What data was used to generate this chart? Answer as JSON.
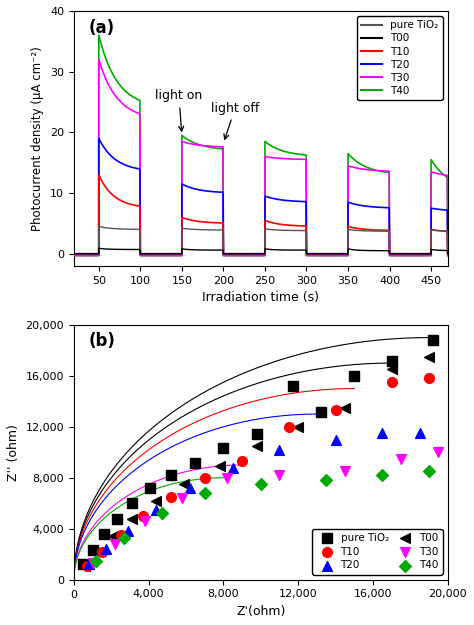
{
  "panel_a": {
    "title": "(a)",
    "xlabel": "Irradiation time (s)",
    "ylabel": "Photocurrent density (μA cm⁻²)",
    "xlim": [
      20,
      470
    ],
    "ylim": [
      -2,
      40
    ],
    "yticks": [
      0,
      10,
      20,
      30,
      40
    ],
    "xticks": [
      50,
      100,
      150,
      200,
      250,
      300,
      350,
      400,
      450
    ],
    "light_on_label": "light on",
    "light_off_label": "light off",
    "series": {
      "pure_TiO2": {
        "color": "#555555",
        "lw": 1.0,
        "label": "pure TiO₂"
      },
      "T00": {
        "color": "#000000",
        "lw": 1.0,
        "label": "T00"
      },
      "T10": {
        "color": "#ff0000",
        "lw": 1.2,
        "label": "T10"
      },
      "T20": {
        "color": "#0000ff",
        "lw": 1.2,
        "label": "T20"
      },
      "T30": {
        "color": "#ff00ff",
        "lw": 1.2,
        "label": "T30"
      },
      "T40": {
        "color": "#00aa00",
        "lw": 1.2,
        "label": "T40"
      }
    },
    "params": {
      "pure_TiO2": {
        "peaks": [
          4.5,
          4.2,
          4.1,
          4.0,
          3.9
        ],
        "steadys": [
          4.0,
          3.9,
          3.8,
          3.7,
          3.7
        ],
        "baseline": 0.0,
        "tau": 15
      },
      "T00": {
        "peaks": [
          0.9,
          0.8,
          0.8,
          0.8,
          0.7
        ],
        "steadys": [
          0.7,
          0.6,
          0.6,
          0.5,
          0.5
        ],
        "baseline": 0.0,
        "tau": 10
      },
      "T10": {
        "peaks": [
          13.0,
          6.0,
          5.5,
          4.5,
          4.0
        ],
        "steadys": [
          7.5,
          5.0,
          4.5,
          3.8,
          3.5
        ],
        "baseline": 0.0,
        "tau": 18
      },
      "T20": {
        "peaks": [
          19.0,
          11.5,
          9.5,
          8.5,
          7.5
        ],
        "steadys": [
          13.5,
          10.0,
          8.5,
          7.5,
          7.0
        ],
        "baseline": 0.0,
        "tau": 20
      },
      "T30": {
        "peaks": [
          32.0,
          18.5,
          16.0,
          14.5,
          13.5
        ],
        "steadys": [
          22.0,
          17.5,
          15.5,
          13.5,
          12.5
        ],
        "baseline": -0.3,
        "tau": 22
      },
      "T40": {
        "peaks": [
          36.0,
          19.5,
          18.5,
          16.5,
          15.5
        ],
        "steadys": [
          24.0,
          17.0,
          16.0,
          13.0,
          10.5
        ],
        "baseline": -0.3,
        "tau": 22
      }
    },
    "pulse_on": [
      50,
      150,
      250,
      350,
      450
    ],
    "pulse_off": [
      100,
      200,
      300,
      400,
      470
    ]
  },
  "panel_b": {
    "title": "(b)",
    "xlabel": "Z'(ohm)",
    "ylabel": "Z'' (ohm)",
    "xlim": [
      0,
      20000
    ],
    "ylim": [
      0,
      20000
    ],
    "xticks": [
      0,
      4000,
      8000,
      12000,
      16000,
      20000
    ],
    "yticks": [
      0,
      4000,
      8000,
      12000,
      16000,
      20000
    ],
    "curves": {
      "pure_TiO2": {
        "color": "#000000",
        "R": 38000
      },
      "T00": {
        "color": "#000000",
        "R": 34000
      },
      "T10": {
        "color": "#ff0000",
        "R": 30000
      },
      "T20": {
        "color": "#0000ff",
        "R": 26000
      },
      "T30": {
        "color": "#ff00ff",
        "R": 18000
      },
      "T40": {
        "color": "#00aa00",
        "R": 16000
      }
    },
    "series": {
      "pure_TiO2": {
        "color": "#000000",
        "marker": "s",
        "label": "pure TiO₂",
        "ms": 7,
        "x": [
          500,
          1000,
          1600,
          2300,
          3100,
          4100,
          5200,
          6500,
          8000,
          9800,
          11700,
          13200,
          15000,
          17000,
          19200
        ],
        "y": [
          1200,
          2300,
          3600,
          4800,
          6000,
          7200,
          8200,
          9200,
          10300,
          11400,
          15200,
          13200,
          16000,
          17200,
          18800
        ]
      },
      "T00": {
        "color": "#000000",
        "marker": "<",
        "label": "T00",
        "ms": 7,
        "x": [
          600,
          1300,
          2100,
          3100,
          4400,
          5900,
          7800,
          9800,
          12000,
          14500,
          17000,
          19000
        ],
        "y": [
          1100,
          2200,
          3400,
          4800,
          6200,
          7500,
          8900,
          10500,
          12000,
          13500,
          16500,
          17500
        ]
      },
      "T10": {
        "color": "#ff0000",
        "marker": "o",
        "label": "T10",
        "ms": 7,
        "x": [
          700,
          1500,
          2500,
          3700,
          5200,
          7000,
          9000,
          11500,
          14000,
          17000,
          19000
        ],
        "y": [
          1100,
          2200,
          3500,
          5000,
          6500,
          8000,
          9300,
          12000,
          13300,
          15500,
          15800
        ]
      },
      "T20": {
        "color": "#0000ff",
        "marker": "^",
        "label": "T20",
        "ms": 7,
        "x": [
          800,
          1700,
          2900,
          4400,
          6200,
          8500,
          11000,
          14000,
          16500,
          18500
        ],
        "y": [
          1200,
          2400,
          3800,
          5500,
          7200,
          8800,
          10200,
          11000,
          11500,
          11500
        ]
      },
      "T30": {
        "color": "#ff00ff",
        "marker": "v",
        "label": "T30",
        "ms": 7,
        "x": [
          1000,
          2200,
          3800,
          5800,
          8200,
          11000,
          14500,
          17500,
          19500
        ],
        "y": [
          1300,
          2800,
          4600,
          6400,
          8000,
          8200,
          8500,
          9500,
          10000
        ]
      },
      "T40": {
        "color": "#00aa00",
        "marker": "D",
        "label": "T40",
        "ms": 6,
        "x": [
          1200,
          2700,
          4700,
          7000,
          10000,
          13500,
          16500,
          19000
        ],
        "y": [
          1500,
          3300,
          5200,
          6800,
          7500,
          7800,
          8200,
          8500
        ]
      }
    }
  }
}
